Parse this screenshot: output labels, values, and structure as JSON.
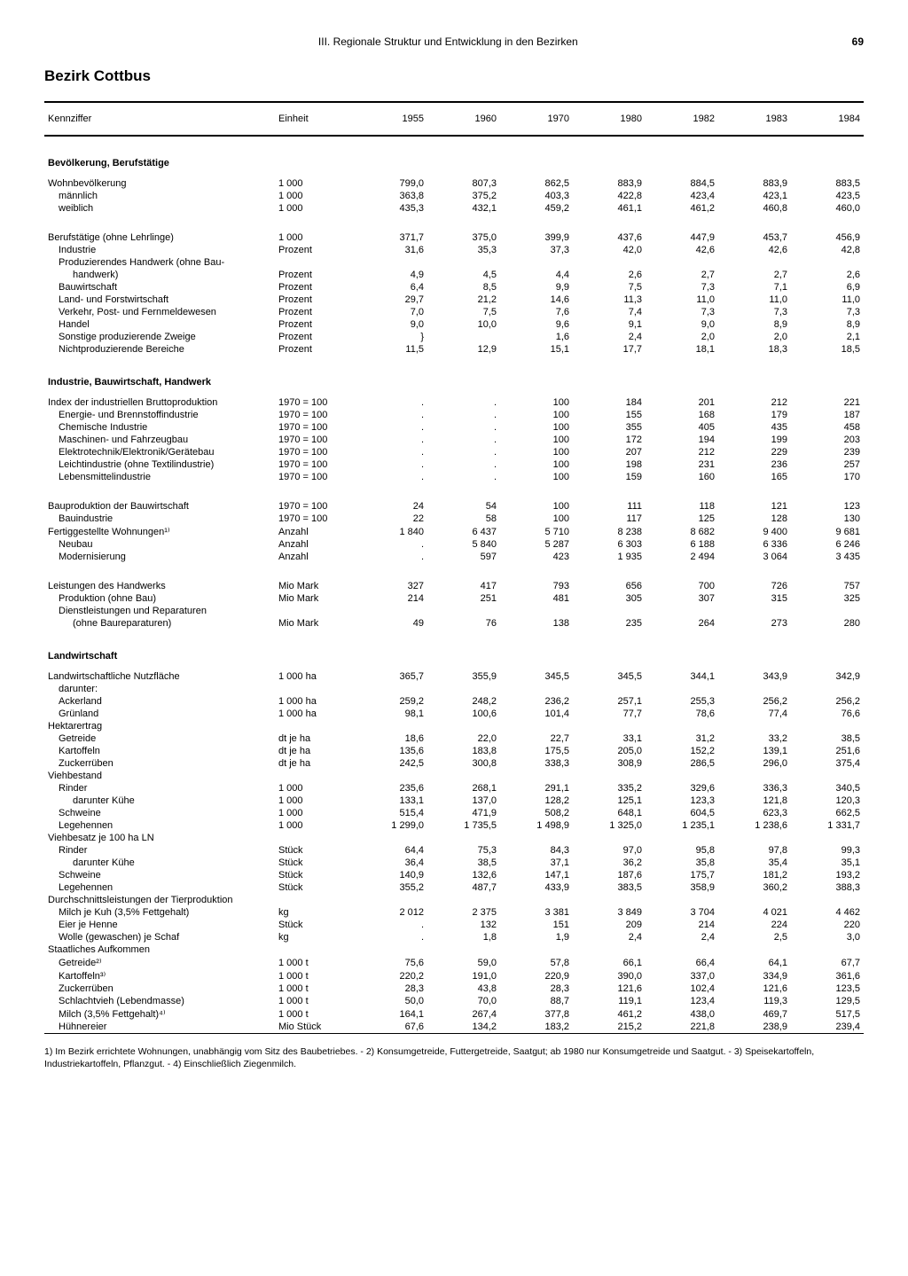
{
  "page": {
    "chapter": "III. Regionale Struktur und Entwicklung in den Bezirken",
    "number": "69",
    "title": "Bezirk Cottbus"
  },
  "columns": [
    "Kennziffer",
    "Einheit",
    "1955",
    "1960",
    "1970",
    "1980",
    "1982",
    "1983",
    "1984"
  ],
  "sections": [
    {
      "title": "Bevölkerung, Berufstätige",
      "rows": [
        {
          "l": "Wohnbevölkerung",
          "u": "1 000",
          "v": [
            "799,0",
            "807,3",
            "862,5",
            "883,9",
            "884,5",
            "883,9",
            "883,5"
          ]
        },
        {
          "l": "männlich",
          "u": "1 000",
          "i": 1,
          "v": [
            "363,8",
            "375,2",
            "403,3",
            "422,8",
            "423,4",
            "423,1",
            "423,5"
          ]
        },
        {
          "l": "weiblich",
          "u": "1 000",
          "i": 1,
          "v": [
            "435,3",
            "432,1",
            "459,2",
            "461,1",
            "461,2",
            "460,8",
            "460,0"
          ]
        },
        {
          "sp": true
        },
        {
          "l": "Berufstätige (ohne Lehrlinge)",
          "u": "1 000",
          "v": [
            "371,7",
            "375,0",
            "399,9",
            "437,6",
            "447,9",
            "453,7",
            "456,9"
          ]
        },
        {
          "l": "Industrie",
          "u": "Prozent",
          "i": 1,
          "v": [
            "31,6",
            "35,3",
            "37,3",
            "42,0",
            "42,6",
            "42,6",
            "42,8"
          ]
        },
        {
          "l": "Produzierendes Handwerk (ohne Bau-",
          "i": 1,
          "nb": true
        },
        {
          "l": "handwerk)",
          "u": "Prozent",
          "i": 2,
          "v": [
            "4,9",
            "4,5",
            "4,4",
            "2,6",
            "2,7",
            "2,7",
            "2,6"
          ]
        },
        {
          "l": "Bauwirtschaft",
          "u": "Prozent",
          "i": 1,
          "v": [
            "6,4",
            "8,5",
            "9,9",
            "7,5",
            "7,3",
            "7,1",
            "6,9"
          ]
        },
        {
          "l": "Land- und Forstwirtschaft",
          "u": "Prozent",
          "i": 1,
          "v": [
            "29,7",
            "21,2",
            "14,6",
            "11,3",
            "11,0",
            "11,0",
            "11,0"
          ]
        },
        {
          "l": "Verkehr, Post- und Fernmeldewesen",
          "u": "Prozent",
          "i": 1,
          "v": [
            "7,0",
            "7,5",
            "7,6",
            "7,4",
            "7,3",
            "7,3",
            "7,3"
          ]
        },
        {
          "l": "Handel",
          "u": "Prozent",
          "i": 1,
          "v": [
            "9,0",
            "10,0",
            "9,6",
            "9,1",
            "9,0",
            "8,9",
            "8,9"
          ]
        },
        {
          "l": "Sonstige produzierende Zweige",
          "u": "Prozent",
          "i": 1,
          "v": [
            "}",
            "",
            "1,6",
            "2,4",
            "2,0",
            "2,0",
            "2,1"
          ]
        },
        {
          "l": "Nichtproduzierende Bereiche",
          "u": "Prozent",
          "i": 1,
          "v": [
            "11,5",
            "12,9",
            "15,1",
            "17,7",
            "18,1",
            "18,3",
            "18,5"
          ]
        }
      ]
    },
    {
      "title": "Industrie, Bauwirtschaft, Handwerk",
      "rows": [
        {
          "l": "Index der industriellen Bruttoproduktion",
          "u": "1970 = 100",
          "v": [
            ".",
            ".",
            "100",
            "184",
            "201",
            "212",
            "221"
          ]
        },
        {
          "l": "Energie- und Brennstoffindustrie",
          "u": "1970 = 100",
          "i": 1,
          "v": [
            ".",
            ".",
            "100",
            "155",
            "168",
            "179",
            "187"
          ]
        },
        {
          "l": "Chemische Industrie",
          "u": "1970 = 100",
          "i": 1,
          "v": [
            ".",
            ".",
            "100",
            "355",
            "405",
            "435",
            "458"
          ]
        },
        {
          "l": "Maschinen- und Fahrzeugbau",
          "u": "1970 = 100",
          "i": 1,
          "v": [
            ".",
            ".",
            "100",
            "172",
            "194",
            "199",
            "203"
          ]
        },
        {
          "l": "Elektrotechnik/Elektronik/Gerätebau",
          "u": "1970 = 100",
          "i": 1,
          "v": [
            ".",
            ".",
            "100",
            "207",
            "212",
            "229",
            "239"
          ]
        },
        {
          "l": "Leichtindustrie (ohne Textilindustrie)",
          "u": "1970 = 100",
          "i": 1,
          "v": [
            ".",
            ".",
            "100",
            "198",
            "231",
            "236",
            "257"
          ]
        },
        {
          "l": "Lebensmittelindustrie",
          "u": "1970 = 100",
          "i": 1,
          "v": [
            ".",
            ".",
            "100",
            "159",
            "160",
            "165",
            "170"
          ]
        },
        {
          "sp": true
        },
        {
          "l": "Bauproduktion der Bauwirtschaft",
          "u": "1970 = 100",
          "v": [
            "24",
            "54",
            "100",
            "111",
            "118",
            "121",
            "123"
          ]
        },
        {
          "l": "Bauindustrie",
          "u": "1970 = 100",
          "i": 1,
          "v": [
            "22",
            "58",
            "100",
            "117",
            "125",
            "128",
            "130"
          ]
        },
        {
          "l": "Fertiggestellte Wohnungen¹⁾",
          "u": "Anzahl",
          "v": [
            "1 840",
            "6 437",
            "5 710",
            "8 238",
            "8 682",
            "9 400",
            "9 681"
          ]
        },
        {
          "l": "Neubau",
          "u": "Anzahl",
          "i": 1,
          "v": [
            ".",
            "5 840",
            "5 287",
            "6 303",
            "6 188",
            "6 336",
            "6 246"
          ]
        },
        {
          "l": "Modernisierung",
          "u": "Anzahl",
          "i": 1,
          "v": [
            ".",
            "597",
            "423",
            "1 935",
            "2 494",
            "3 064",
            "3 435"
          ]
        },
        {
          "sp": true
        },
        {
          "l": "Leistungen des Handwerks",
          "u": "Mio Mark",
          "v": [
            "327",
            "417",
            "793",
            "656",
            "700",
            "726",
            "757"
          ]
        },
        {
          "l": "Produktion (ohne Bau)",
          "u": "Mio Mark",
          "i": 1,
          "v": [
            "214",
            "251",
            "481",
            "305",
            "307",
            "315",
            "325"
          ]
        },
        {
          "l": "Dienstleistungen und Reparaturen",
          "i": 1,
          "nb": true
        },
        {
          "l": "(ohne Baureparaturen)",
          "u": "Mio Mark",
          "i": 2,
          "v": [
            "49",
            "76",
            "138",
            "235",
            "264",
            "273",
            "280"
          ]
        }
      ]
    },
    {
      "title": "Landwirtschaft",
      "rows": [
        {
          "l": "Landwirtschaftliche Nutzfläche",
          "u": "1 000 ha",
          "v": [
            "365,7",
            "355,9",
            "345,5",
            "345,5",
            "344,1",
            "343,9",
            "342,9"
          ]
        },
        {
          "l": "darunter:",
          "i": 1,
          "nb": true
        },
        {
          "l": "Ackerland",
          "u": "1 000 ha",
          "i": 1,
          "v": [
            "259,2",
            "248,2",
            "236,2",
            "257,1",
            "255,3",
            "256,2",
            "256,2"
          ]
        },
        {
          "l": "Grünland",
          "u": "1 000 ha",
          "i": 1,
          "v": [
            "98,1",
            "100,6",
            "101,4",
            "77,7",
            "78,6",
            "77,4",
            "76,6"
          ]
        },
        {
          "l": "Hektarertrag",
          "nb": true
        },
        {
          "l": "Getreide",
          "u": "dt je ha",
          "i": 1,
          "v": [
            "18,6",
            "22,0",
            "22,7",
            "33,1",
            "31,2",
            "33,2",
            "38,5"
          ]
        },
        {
          "l": "Kartoffeln",
          "u": "dt je ha",
          "i": 1,
          "v": [
            "135,6",
            "183,8",
            "175,5",
            "205,0",
            "152,2",
            "139,1",
            "251,6"
          ]
        },
        {
          "l": "Zuckerrüben",
          "u": "dt je ha",
          "i": 1,
          "v": [
            "242,5",
            "300,8",
            "338,3",
            "308,9",
            "286,5",
            "296,0",
            "375,4"
          ]
        },
        {
          "l": "Viehbestand",
          "nb": true
        },
        {
          "l": "Rinder",
          "u": "1 000",
          "i": 1,
          "v": [
            "235,6",
            "268,1",
            "291,1",
            "335,2",
            "329,6",
            "336,3",
            "340,5"
          ]
        },
        {
          "l": "darunter Kühe",
          "u": "1 000",
          "i": 2,
          "v": [
            "133,1",
            "137,0",
            "128,2",
            "125,1",
            "123,3",
            "121,8",
            "120,3"
          ]
        },
        {
          "l": "Schweine",
          "u": "1 000",
          "i": 1,
          "v": [
            "515,4",
            "471,9",
            "508,2",
            "648,1",
            "604,5",
            "623,3",
            "662,5"
          ]
        },
        {
          "l": "Legehennen",
          "u": "1 000",
          "i": 1,
          "v": [
            "1 299,0",
            "1 735,5",
            "1 498,9",
            "1 325,0",
            "1 235,1",
            "1 238,6",
            "1 331,7"
          ]
        },
        {
          "l": "Viehbesatz je 100 ha LN",
          "nb": true
        },
        {
          "l": "Rinder",
          "u": "Stück",
          "i": 1,
          "v": [
            "64,4",
            "75,3",
            "84,3",
            "97,0",
            "95,8",
            "97,8",
            "99,3"
          ]
        },
        {
          "l": "darunter Kühe",
          "u": "Stück",
          "i": 2,
          "v": [
            "36,4",
            "38,5",
            "37,1",
            "36,2",
            "35,8",
            "35,4",
            "35,1"
          ]
        },
        {
          "l": "Schweine",
          "u": "Stück",
          "i": 1,
          "v": [
            "140,9",
            "132,6",
            "147,1",
            "187,6",
            "175,7",
            "181,2",
            "193,2"
          ]
        },
        {
          "l": "Legehennen",
          "u": "Stück",
          "i": 1,
          "v": [
            "355,2",
            "487,7",
            "433,9",
            "383,5",
            "358,9",
            "360,2",
            "388,3"
          ]
        },
        {
          "l": "Durchschnittsleistungen der Tierproduktion",
          "nb": true
        },
        {
          "l": "Milch je Kuh (3,5% Fettgehalt)",
          "u": "kg",
          "i": 1,
          "v": [
            "2 012",
            "2 375",
            "3 381",
            "3 849",
            "3 704",
            "4 021",
            "4 462"
          ]
        },
        {
          "l": "Eier je Henne",
          "u": "Stück",
          "i": 1,
          "v": [
            ".",
            "132",
            "151",
            "209",
            "214",
            "224",
            "220"
          ]
        },
        {
          "l": "Wolle (gewaschen) je Schaf",
          "u": "kg",
          "i": 1,
          "v": [
            ".",
            "1,8",
            "1,9",
            "2,4",
            "2,4",
            "2,5",
            "3,0"
          ]
        },
        {
          "l": "Staatliches Aufkommen",
          "nb": true
        },
        {
          "l": "Getreide²⁾",
          "u": "1 000 t",
          "i": 1,
          "v": [
            "75,6",
            "59,0",
            "57,8",
            "66,1",
            "66,4",
            "64,1",
            "67,7"
          ]
        },
        {
          "l": "Kartoffeln³⁾",
          "u": "1 000 t",
          "i": 1,
          "v": [
            "220,2",
            "191,0",
            "220,9",
            "390,0",
            "337,0",
            "334,9",
            "361,6"
          ]
        },
        {
          "l": "Zuckerrüben",
          "u": "1 000 t",
          "i": 1,
          "v": [
            "28,3",
            "43,8",
            "28,3",
            "121,6",
            "102,4",
            "121,6",
            "123,5"
          ]
        },
        {
          "l": "Schlachtvieh (Lebendmasse)",
          "u": "1 000 t",
          "i": 1,
          "v": [
            "50,0",
            "70,0",
            "88,7",
            "119,1",
            "123,4",
            "119,3",
            "129,5"
          ]
        },
        {
          "l": "Milch (3,5% Fettgehalt)⁴⁾",
          "u": "1 000 t",
          "i": 1,
          "v": [
            "164,1",
            "267,4",
            "377,8",
            "461,2",
            "438,0",
            "469,7",
            "517,5"
          ]
        },
        {
          "l": "Hühnereier",
          "u": "Mio Stück",
          "i": 1,
          "v": [
            "67,6",
            "134,2",
            "183,2",
            "215,2",
            "221,8",
            "238,9",
            "239,4"
          ]
        }
      ]
    }
  ],
  "footnotes": "1) Im Bezirk errichtete Wohnungen, unabhängig vom Sitz des Baubetriebes. - 2) Konsumgetreide, Futtergetreide, Saatgut; ab 1980 nur Konsumgetreide und Saatgut. - 3) Speisekartoffeln, Industriekartoffeln, Pflanzgut. - 4) Einschließlich Ziegenmilch."
}
